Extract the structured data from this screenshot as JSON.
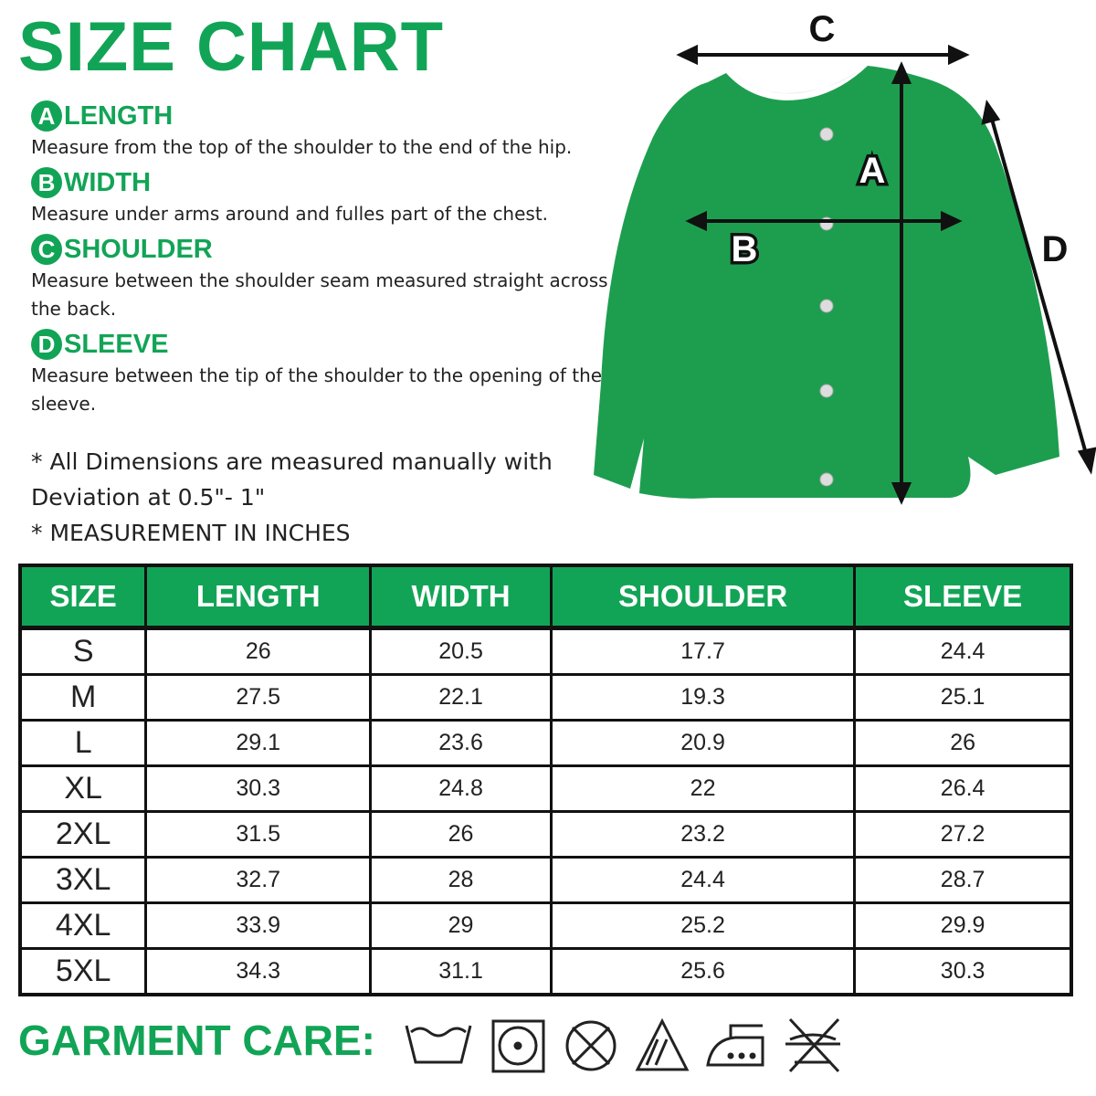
{
  "title": "SIZE CHART",
  "measures": [
    {
      "letter": "A",
      "label": "LENGTH",
      "description": "Measure from the top of the shoulder to the end of the hip."
    },
    {
      "letter": "B",
      "label": "WIDTH",
      "description": "Measure under arms around and fulles part of the chest."
    },
    {
      "letter": "C",
      "label": "SHOULDER",
      "description": "Measure between the shoulder seam measured straight across the back."
    },
    {
      "letter": "D",
      "label": "SLEEVE",
      "description": "Measure between the tip of the shoulder to the opening of the sleeve."
    }
  ],
  "notes": [
    "* All Dimensions are measured manually with Deviation at 0.5\"- 1\"",
    "* MEASUREMENT IN INCHES"
  ],
  "table": {
    "headers": [
      "SIZE",
      "LENGTH",
      "WIDTH",
      "SHOULDER",
      "SLEEVE"
    ],
    "rows": [
      [
        "S",
        "26",
        "20.5",
        "17.7",
        "24.4"
      ],
      [
        "M",
        "27.5",
        "22.1",
        "19.3",
        "25.1"
      ],
      [
        "L",
        "29.1",
        "23.6",
        "20.9",
        "26"
      ],
      [
        "XL",
        "30.3",
        "24.8",
        "22",
        "26.4"
      ],
      [
        "2XL",
        "31.5",
        "26",
        "23.2",
        "27.2"
      ],
      [
        "3XL",
        "32.7",
        "28",
        "24.4",
        "28.7"
      ],
      [
        "4XL",
        "33.9",
        "29",
        "25.2",
        "29.9"
      ],
      [
        "5XL",
        "34.3",
        "31.1",
        "25.6",
        "30.3"
      ]
    ]
  },
  "garment_care": "GARMENT CARE:"
}
